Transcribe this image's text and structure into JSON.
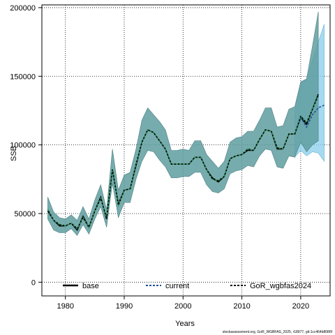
{
  "chart_data": {
    "type": "line",
    "title": "",
    "xlabel": "Years",
    "ylabel": "SSB",
    "xlim": [
      1976,
      2025
    ],
    "ylim": [
      -10000,
      202000
    ],
    "grid": true,
    "legend_position": "bottom",
    "x_ticks": [
      1980,
      1990,
      2000,
      2010,
      2020
    ],
    "y_ticks": [
      0,
      50000,
      100000,
      150000,
      200000
    ],
    "x_tick_labels": [
      "1980",
      "1990",
      "2000",
      "2010",
      "2020"
    ],
    "y_tick_labels": [
      "0",
      "50000",
      "100000",
      "150000",
      "200000"
    ],
    "colors": {
      "base": "#000000",
      "current": "#1f4e9a",
      "band_base": "#5f9ea0",
      "band_current": "#87cdeb",
      "gor": "#2e8b57"
    },
    "series": [
      {
        "name": "base",
        "x": [
          1977,
          1978,
          1979,
          1980,
          1981,
          1982,
          1983,
          1984,
          1985,
          1986,
          1987,
          1988,
          1989,
          1990,
          1991,
          1992,
          1993,
          1994,
          1995,
          1996,
          1997,
          1998,
          1999,
          2000,
          2001,
          2002,
          2003,
          2004,
          2005,
          2006,
          2007,
          2008,
          2009,
          2010,
          2011,
          2012,
          2013,
          2014,
          2015,
          2016,
          2017,
          2018,
          2019,
          2020,
          2021,
          2022,
          2023
        ],
        "values": [
          52000,
          45000,
          41000,
          41000,
          43000,
          38000,
          48000,
          40000,
          52000,
          62000,
          46000,
          82000,
          57000,
          67000,
          68000,
          85000,
          102000,
          111000,
          109000,
          103000,
          97000,
          86000,
          86000,
          86000,
          86000,
          91000,
          91000,
          82000,
          76000,
          73000,
          77000,
          90000,
          92000,
          93000,
          96000,
          96000,
          104000,
          111000,
          110000,
          97000,
          97000,
          108000,
          108000,
          120000,
          115000,
          126000,
          137000
        ],
        "lower": [
          46000,
          38000,
          36000,
          36000,
          39000,
          34000,
          42000,
          35000,
          46000,
          55000,
          40000,
          72000,
          47000,
          58000,
          58000,
          75000,
          88000,
          96000,
          95000,
          89000,
          84000,
          76000,
          76000,
          77000,
          77000,
          80000,
          80000,
          71000,
          66000,
          65000,
          68000,
          79000,
          81000,
          82000,
          85000,
          84000,
          92000,
          97000,
          96000,
          84000,
          83000,
          92000,
          91000,
          102000,
          95000,
          100000,
          103000
        ],
        "upper": [
          62000,
          51000,
          47000,
          46000,
          49000,
          45000,
          55000,
          46000,
          60000,
          71000,
          53000,
          97000,
          67000,
          78000,
          80000,
          97000,
          118000,
          127000,
          122000,
          117000,
          111000,
          96000,
          96000,
          97000,
          96000,
          103000,
          103000,
          93000,
          88000,
          83000,
          88000,
          102000,
          105000,
          106000,
          110000,
          110000,
          118000,
          127000,
          127000,
          113000,
          114000,
          126000,
          128000,
          146000,
          148000,
          172000,
          197000
        ]
      },
      {
        "name": "current",
        "x": [
          2019,
          2020,
          2021,
          2022,
          2023,
          2024
        ],
        "values": [
          108000,
          120000,
          113000,
          122000,
          127000,
          129000
        ],
        "lower": [
          91000,
          96000,
          92000,
          95000,
          94000,
          88000
        ],
        "upper": [
          126000,
          145000,
          148000,
          162000,
          175000,
          188000
        ]
      },
      {
        "name": "GoR_wgbfas2024",
        "x": [
          1977,
          1978,
          1979,
          1980,
          1981,
          1982,
          1983,
          1984,
          1985,
          1986,
          1987,
          1988,
          1989,
          1990,
          1991,
          1992,
          1993,
          1994,
          1995,
          1996,
          1997,
          1998,
          1999,
          2000,
          2001,
          2002,
          2003,
          2004,
          2005,
          2006,
          2007,
          2008,
          2009,
          2010,
          2011,
          2012,
          2013,
          2014,
          2015,
          2016,
          2017,
          2018,
          2019,
          2020,
          2021,
          2022,
          2023
        ],
        "values": [
          53000,
          45000,
          42000,
          41000,
          43000,
          39000,
          47000,
          40000,
          52000,
          61000,
          47000,
          82000,
          56000,
          67000,
          68000,
          86000,
          102000,
          111000,
          109000,
          103000,
          97000,
          86000,
          86000,
          86000,
          86000,
          91000,
          91000,
          82000,
          75000,
          74000,
          77000,
          90000,
          92000,
          93000,
          97000,
          96000,
          104000,
          111000,
          110000,
          98000,
          97000,
          108000,
          108000,
          121000,
          116000,
          126000,
          136000
        ]
      }
    ],
    "footnote": "stockassessment.org, GoR_WGBFAS_2025, r18977, git:1cc464b8086f"
  }
}
